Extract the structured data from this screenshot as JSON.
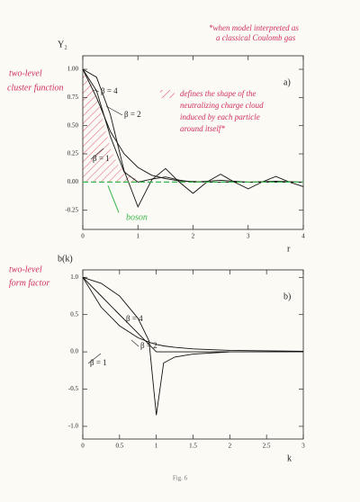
{
  "chart_data": [
    {
      "type": "line",
      "panel_label": "a)",
      "y_label": "Y₂",
      "x_label": "r",
      "x": [
        0,
        0.25,
        0.5,
        0.75,
        1,
        1.25,
        1.5,
        1.75,
        2,
        2.25,
        2.5,
        2.75,
        3,
        3.25,
        3.5,
        3.75,
        4
      ],
      "series": [
        {
          "name": "β = 4",
          "color": "#111111",
          "values": [
            1,
            0.93,
            0.6,
            0.1,
            -0.22,
            0.02,
            0.12,
            0,
            -0.1,
            0,
            0.07,
            0,
            -0.06,
            0,
            0.05,
            0,
            -0.04
          ]
        },
        {
          "name": "β = 2",
          "color": "#111111",
          "values": [
            1,
            0.81,
            0.405,
            0.09,
            0,
            0.026,
            0.045,
            0.017,
            0,
            0.008,
            0.016,
            0.007,
            0,
            0.004,
            0.008,
            0.003,
            0
          ]
        },
        {
          "name": "β = 1",
          "color": "#111111",
          "values": [
            1,
            0.75,
            0.45,
            0.25,
            0.13,
            0.06,
            0.03,
            0.01,
            0.005,
            0,
            0,
            0,
            0,
            0,
            0,
            0,
            0
          ]
        },
        {
          "name": "boson",
          "color": "#3ab54a",
          "dashed": true,
          "values": [
            0,
            0,
            0,
            0,
            0,
            0,
            0,
            0,
            0,
            0,
            0,
            0,
            0,
            0,
            0,
            0,
            0
          ]
        }
      ],
      "xlim": [
        0,
        4
      ],
      "ylim": [
        -0.42,
        1.12
      ],
      "xticks": [
        0,
        1,
        2,
        3,
        4
      ],
      "yticks": [
        {
          "value": -0.25,
          "label": "-0.25"
        },
        {
          "value": 0,
          "label": "0.00"
        },
        {
          "value": 0.25,
          "label": "0.25"
        },
        {
          "value": 0.5,
          "label": "0.50"
        },
        {
          "value": 0.75,
          "label": "0.75"
        },
        {
          "value": 1,
          "label": "1.00"
        }
      ]
    },
    {
      "type": "line",
      "panel_label": "b)",
      "y_label": "b(k)",
      "x_label": "k",
      "x": [
        0,
        0.25,
        0.5,
        0.75,
        0.9,
        1,
        1.1,
        1.25,
        1.5,
        2,
        2.5,
        3
      ],
      "series": [
        {
          "name": "β = 4",
          "color": "#111111",
          "values": [
            1,
            0.92,
            0.75,
            0.45,
            0.15,
            -0.85,
            -0.15,
            -0.07,
            -0.03,
            0,
            0,
            0
          ]
        },
        {
          "name": "β = 2",
          "color": "#111111",
          "values": [
            1,
            0.75,
            0.5,
            0.25,
            0.1,
            0,
            0,
            0,
            0,
            0,
            0,
            0
          ]
        },
        {
          "name": "β = 1",
          "color": "#111111",
          "values": [
            1,
            0.6,
            0.35,
            0.19,
            0.13,
            0.1,
            0.08,
            0.06,
            0.04,
            0.02,
            0.014,
            0.009
          ]
        }
      ],
      "xlim": [
        0,
        3
      ],
      "ylim": [
        -1.17,
        1.1
      ],
      "xticks": [
        0,
        0.5,
        1,
        1.5,
        2,
        2.5,
        3
      ],
      "yticks": [
        {
          "value": -1,
          "label": "-1.0"
        },
        {
          "value": -0.5,
          "label": "-0.5"
        },
        {
          "value": 0,
          "label": "0.0"
        },
        {
          "value": 0.5,
          "label": "0.5"
        },
        {
          "value": 1,
          "label": "1.0"
        }
      ]
    }
  ],
  "handwritten": {
    "top_note": [
      "*when model interpreted as",
      "a classical Coulomb gas"
    ],
    "cluster_label": [
      "two-level",
      "cluster function"
    ],
    "shape_note": [
      "defines the shape of the",
      "neutralizing charge cloud",
      "induced by each particle",
      "around itself*"
    ],
    "form_label": [
      "two-level",
      "form factor"
    ]
  },
  "caption": "Fig. 6"
}
